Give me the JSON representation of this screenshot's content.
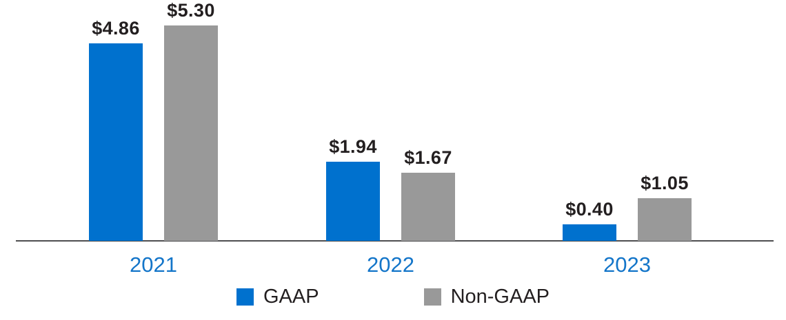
{
  "chart_data": {
    "type": "bar",
    "categories": [
      "2021",
      "2022",
      "2023"
    ],
    "series": [
      {
        "name": "GAAP",
        "color": "#0071ce",
        "values": [
          4.86,
          1.94,
          0.4
        ],
        "labels": [
          "$4.86",
          "$1.94",
          "$0.40"
        ]
      },
      {
        "name": "Non-GAAP",
        "color": "#999999",
        "values": [
          5.3,
          1.67,
          1.05
        ],
        "labels": [
          "$5.30",
          "$1.67",
          "$1.05"
        ]
      }
    ],
    "title": "",
    "xlabel": "",
    "ylabel": "",
    "ylim": [
      0,
      5.9
    ],
    "grid": false,
    "legend_position": "bottom",
    "value_prefix": "$"
  },
  "colors": {
    "axis_line": "#4d4d4f",
    "value_label": "#231f20",
    "year_label": "#1375c9",
    "legend_text": "#231f20"
  },
  "legend": {
    "items": [
      {
        "label": "GAAP",
        "color": "#0071ce"
      },
      {
        "label": "Non-GAAP",
        "color": "#999999"
      }
    ]
  }
}
